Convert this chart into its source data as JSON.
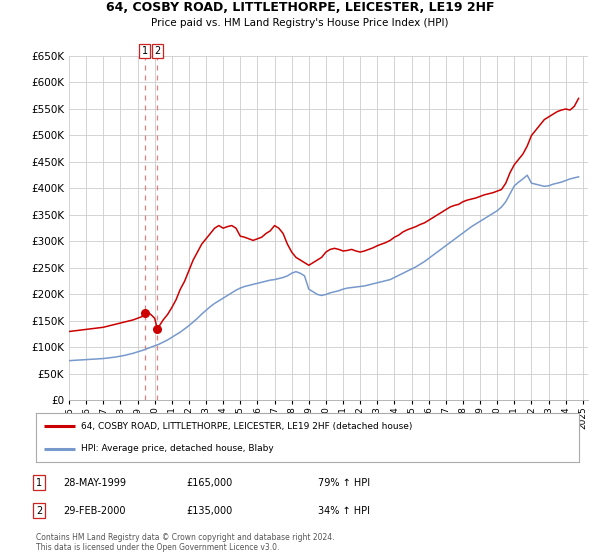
{
  "title": "64, COSBY ROAD, LITTLETHORPE, LEICESTER, LE19 2HF",
  "subtitle": "Price paid vs. HM Land Registry's House Price Index (HPI)",
  "legend_line1": "64, COSBY ROAD, LITTLETHORPE, LEICESTER, LE19 2HF (detached house)",
  "legend_line2": "HPI: Average price, detached house, Blaby",
  "transaction1_label": "1",
  "transaction1_date": "28-MAY-1999",
  "transaction1_price": "£165,000",
  "transaction1_hpi": "79% ↑ HPI",
  "transaction2_label": "2",
  "transaction2_date": "29-FEB-2000",
  "transaction2_price": "£135,000",
  "transaction2_hpi": "34% ↑ HPI",
  "footnote1": "Contains HM Land Registry data © Crown copyright and database right 2024.",
  "footnote2": "This data is licensed under the Open Government Licence v3.0.",
  "red_color": "#cc0000",
  "blue_color": "#7799cc",
  "dashed_vline_color": "#e08080",
  "background_color": "#ffffff",
  "grid_color": "#cccccc",
  "ylim": [
    0,
    650000
  ],
  "yticks": [
    0,
    50000,
    100000,
    150000,
    200000,
    250000,
    300000,
    350000,
    400000,
    450000,
    500000,
    550000,
    600000,
    650000
  ],
  "xmin": 1995.0,
  "xmax": 2025.3,
  "xtick_years": [
    1995,
    1996,
    1997,
    1998,
    1999,
    2000,
    2001,
    2002,
    2003,
    2004,
    2005,
    2006,
    2007,
    2008,
    2009,
    2010,
    2011,
    2012,
    2013,
    2014,
    2015,
    2016,
    2017,
    2018,
    2019,
    2020,
    2021,
    2022,
    2023,
    2024,
    2025
  ],
  "vline1_x": 1999.41,
  "vline2_x": 2000.16,
  "dot1_x": 1999.41,
  "dot1_y": 165000,
  "dot2_x": 2000.16,
  "dot2_y": 135000,
  "red_series_x": [
    1995.0,
    1995.25,
    1995.5,
    1995.75,
    1996.0,
    1996.25,
    1996.5,
    1996.75,
    1997.0,
    1997.25,
    1997.5,
    1997.75,
    1998.0,
    1998.25,
    1998.5,
    1998.75,
    1999.0,
    1999.25,
    1999.41,
    1999.75,
    2000.0,
    2000.16,
    2000.5,
    2000.75,
    2001.0,
    2001.25,
    2001.5,
    2001.75,
    2002.0,
    2002.25,
    2002.5,
    2002.75,
    2003.0,
    2003.25,
    2003.5,
    2003.75,
    2004.0,
    2004.25,
    2004.5,
    2004.75,
    2005.0,
    2005.25,
    2005.5,
    2005.75,
    2006.0,
    2006.25,
    2006.5,
    2006.75,
    2007.0,
    2007.25,
    2007.5,
    2007.75,
    2008.0,
    2008.25,
    2008.5,
    2008.75,
    2009.0,
    2009.25,
    2009.5,
    2009.75,
    2010.0,
    2010.25,
    2010.5,
    2010.75,
    2011.0,
    2011.25,
    2011.5,
    2011.75,
    2012.0,
    2012.25,
    2012.5,
    2012.75,
    2013.0,
    2013.25,
    2013.5,
    2013.75,
    2014.0,
    2014.25,
    2014.5,
    2014.75,
    2015.0,
    2015.25,
    2015.5,
    2015.75,
    2016.0,
    2016.25,
    2016.5,
    2016.75,
    2017.0,
    2017.25,
    2017.5,
    2017.75,
    2018.0,
    2018.25,
    2018.5,
    2018.75,
    2019.0,
    2019.25,
    2019.5,
    2019.75,
    2020.0,
    2020.25,
    2020.5,
    2020.75,
    2021.0,
    2021.25,
    2021.5,
    2021.75,
    2022.0,
    2022.25,
    2022.5,
    2022.75,
    2023.0,
    2023.25,
    2023.5,
    2023.75,
    2024.0,
    2024.25,
    2024.5,
    2024.75
  ],
  "red_series_y": [
    130000,
    131000,
    132000,
    133000,
    134000,
    135000,
    136000,
    137000,
    138000,
    140000,
    142000,
    144000,
    146000,
    148000,
    150000,
    152000,
    155000,
    158000,
    165000,
    163000,
    155000,
    135000,
    152000,
    162000,
    175000,
    190000,
    210000,
    225000,
    245000,
    265000,
    280000,
    295000,
    305000,
    315000,
    325000,
    330000,
    325000,
    328000,
    330000,
    325000,
    310000,
    308000,
    305000,
    302000,
    305000,
    308000,
    315000,
    320000,
    330000,
    325000,
    315000,
    295000,
    280000,
    270000,
    265000,
    260000,
    255000,
    260000,
    265000,
    270000,
    280000,
    285000,
    287000,
    285000,
    282000,
    283000,
    285000,
    282000,
    280000,
    282000,
    285000,
    288000,
    292000,
    295000,
    298000,
    302000,
    308000,
    312000,
    318000,
    322000,
    325000,
    328000,
    332000,
    335000,
    340000,
    345000,
    350000,
    355000,
    360000,
    365000,
    368000,
    370000,
    375000,
    378000,
    380000,
    382000,
    385000,
    388000,
    390000,
    392000,
    395000,
    398000,
    410000,
    430000,
    445000,
    455000,
    465000,
    480000,
    500000,
    510000,
    520000,
    530000,
    535000,
    540000,
    545000,
    548000,
    550000,
    548000,
    555000,
    570000
  ],
  "blue_series_x": [
    1995.0,
    1995.25,
    1995.5,
    1995.75,
    1996.0,
    1996.25,
    1996.5,
    1996.75,
    1997.0,
    1997.25,
    1997.5,
    1997.75,
    1998.0,
    1998.25,
    1998.5,
    1998.75,
    1999.0,
    1999.25,
    1999.5,
    1999.75,
    2000.0,
    2000.25,
    2000.5,
    2000.75,
    2001.0,
    2001.25,
    2001.5,
    2001.75,
    2002.0,
    2002.25,
    2002.5,
    2002.75,
    2003.0,
    2003.25,
    2003.5,
    2003.75,
    2004.0,
    2004.25,
    2004.5,
    2004.75,
    2005.0,
    2005.25,
    2005.5,
    2005.75,
    2006.0,
    2006.25,
    2006.5,
    2006.75,
    2007.0,
    2007.25,
    2007.5,
    2007.75,
    2008.0,
    2008.25,
    2008.5,
    2008.75,
    2009.0,
    2009.25,
    2009.5,
    2009.75,
    2010.0,
    2010.25,
    2010.5,
    2010.75,
    2011.0,
    2011.25,
    2011.5,
    2011.75,
    2012.0,
    2012.25,
    2012.5,
    2012.75,
    2013.0,
    2013.25,
    2013.5,
    2013.75,
    2014.0,
    2014.25,
    2014.5,
    2014.75,
    2015.0,
    2015.25,
    2015.5,
    2015.75,
    2016.0,
    2016.25,
    2016.5,
    2016.75,
    2017.0,
    2017.25,
    2017.5,
    2017.75,
    2018.0,
    2018.25,
    2018.5,
    2018.75,
    2019.0,
    2019.25,
    2019.5,
    2019.75,
    2020.0,
    2020.25,
    2020.5,
    2020.75,
    2021.0,
    2021.25,
    2021.5,
    2021.75,
    2022.0,
    2022.25,
    2022.5,
    2022.75,
    2023.0,
    2023.25,
    2023.5,
    2023.75,
    2024.0,
    2024.25,
    2024.5,
    2024.75
  ],
  "blue_series_y": [
    75000,
    75500,
    76000,
    76500,
    77000,
    77500,
    78000,
    78500,
    79000,
    80000,
    81000,
    82000,
    83500,
    85000,
    87000,
    89000,
    91500,
    94000,
    97000,
    100000,
    103000,
    106000,
    110000,
    114000,
    119000,
    124000,
    129000,
    135000,
    141000,
    148000,
    155000,
    163000,
    170000,
    177000,
    183000,
    188000,
    193000,
    198000,
    203000,
    208000,
    212000,
    215000,
    217000,
    219000,
    221000,
    223000,
    225000,
    227000,
    228000,
    230000,
    232000,
    235000,
    240000,
    243000,
    240000,
    235000,
    210000,
    205000,
    200000,
    198000,
    200000,
    203000,
    205000,
    207000,
    210000,
    212000,
    213000,
    214000,
    215000,
    216000,
    218000,
    220000,
    222000,
    224000,
    226000,
    228000,
    232000,
    236000,
    240000,
    244000,
    248000,
    252000,
    257000,
    262000,
    268000,
    274000,
    280000,
    286000,
    292000,
    298000,
    304000,
    310000,
    316000,
    322000,
    328000,
    333000,
    338000,
    343000,
    348000,
    353000,
    358000,
    365000,
    375000,
    390000,
    405000,
    412000,
    418000,
    425000,
    410000,
    408000,
    406000,
    404000,
    405000,
    408000,
    410000,
    412000,
    415000,
    418000,
    420000,
    422000
  ]
}
